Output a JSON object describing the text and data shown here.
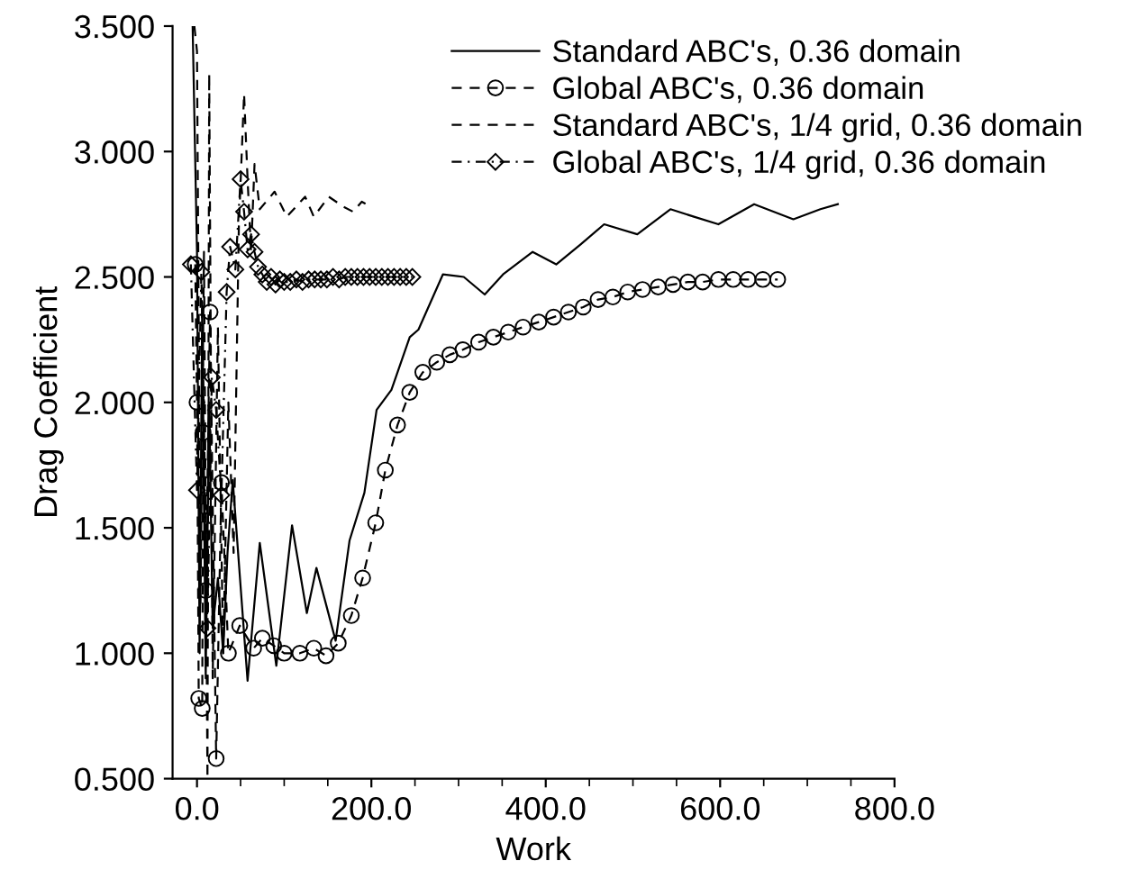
{
  "chart_data": {
    "type": "line",
    "xlabel": "Work",
    "ylabel": "Drag Coefficient",
    "xlim": [
      -28,
      800
    ],
    "ylim": [
      0.5,
      3.5
    ],
    "xticks": [
      {
        "value": 0,
        "label": "0.0"
      },
      {
        "value": 200,
        "label": "200.0"
      },
      {
        "value": 400,
        "label": "400.0"
      },
      {
        "value": 600,
        "label": "600.0"
      },
      {
        "value": 800,
        "label": "800.0"
      }
    ],
    "yticks": [
      {
        "value": 0.5,
        "label": "0.500"
      },
      {
        "value": 1.0,
        "label": "1.000"
      },
      {
        "value": 1.5,
        "label": "1.500"
      },
      {
        "value": 2.0,
        "label": "2.000"
      },
      {
        "value": 2.5,
        "label": "2.500"
      },
      {
        "value": 3.0,
        "label": "3.000"
      },
      {
        "value": 3.5,
        "label": "3.500"
      }
    ],
    "grid": false,
    "legend": "top right",
    "series": [
      {
        "name": "Standard ABC's, 0.36 domain",
        "color": "#000000",
        "marker": "none",
        "line_style": "solid",
        "x": [
          -5,
          0,
          3,
          6,
          10,
          14,
          18,
          24,
          30,
          35,
          41,
          58,
          72,
          91,
          109,
          126,
          137,
          159,
          175,
          192,
          206,
          223,
          244,
          254,
          282,
          306,
          330,
          351,
          385,
          412,
          440,
          467,
          505,
          543,
          570,
          598,
          639,
          684,
          715,
          735
        ],
        "values": [
          3.5,
          2.6,
          1.0,
          2.4,
          0.9,
          2.0,
          1.1,
          1.3,
          1.0,
          1.4,
          1.69,
          0.89,
          1.44,
          0.95,
          1.51,
          1.16,
          1.34,
          1.05,
          1.45,
          1.64,
          1.97,
          2.05,
          2.26,
          2.29,
          2.51,
          2.5,
          2.43,
          2.51,
          2.6,
          2.55,
          2.63,
          2.71,
          2.67,
          2.77,
          2.74,
          2.71,
          2.79,
          2.73,
          2.77,
          2.79
        ]
      },
      {
        "name": "Global ABC's, 0.36 domain",
        "color": "#000000",
        "marker": "circle",
        "line_style": "dashed",
        "x": [
          -2,
          0,
          2,
          6,
          7,
          10,
          15,
          22,
          28,
          36,
          49,
          65,
          75,
          88,
          100,
          118,
          134,
          148,
          162,
          177,
          190,
          205,
          216,
          230,
          244,
          259,
          275,
          290,
          305,
          323,
          340,
          357,
          374,
          392,
          409,
          426,
          443,
          460,
          477,
          494,
          511,
          529,
          546,
          563,
          580,
          598,
          615,
          632,
          649,
          666
        ],
        "values": [
          2.55,
          2.0,
          0.82,
          0.78,
          1.88,
          1.25,
          2.36,
          0.58,
          1.68,
          1.0,
          1.11,
          1.02,
          1.06,
          1.03,
          1.0,
          1.0,
          1.02,
          0.99,
          1.04,
          1.15,
          1.3,
          1.52,
          1.73,
          1.91,
          2.04,
          2.12,
          2.16,
          2.19,
          2.21,
          2.24,
          2.26,
          2.28,
          2.3,
          2.32,
          2.34,
          2.36,
          2.38,
          2.41,
          2.42,
          2.44,
          2.45,
          2.46,
          2.47,
          2.48,
          2.48,
          2.49,
          2.49,
          2.49,
          2.49,
          2.49
        ]
      },
      {
        "name": "Standard ABC's, 1/4 grid, 0.36 domain",
        "color": "#000000",
        "marker": "none",
        "line_style": "dashed",
        "x": [
          -3,
          0,
          4,
          8,
          12,
          14,
          18,
          24,
          30,
          36,
          42,
          48,
          54,
          58,
          62,
          66,
          72,
          89,
          103,
          124,
          134,
          151,
          168,
          179,
          189,
          199
        ],
        "values": [
          3.5,
          3.4,
          1.2,
          2.6,
          0.5,
          3.31,
          0.9,
          2.3,
          1.0,
          2.0,
          1.4,
          2.7,
          3.23,
          2.89,
          2.6,
          2.95,
          2.77,
          2.84,
          2.74,
          2.82,
          2.74,
          2.82,
          2.78,
          2.76,
          2.8,
          2.78
        ]
      },
      {
        "name": "Global ABC's, 1/4 grid, 0.36 domain",
        "color": "#000000",
        "marker": "diamond",
        "line_style": "dashdot",
        "x": [
          -7,
          0,
          5,
          12,
          17,
          22,
          28,
          34,
          38,
          44,
          50,
          54,
          58,
          62,
          66,
          70,
          75,
          80,
          85,
          90,
          95,
          100,
          107,
          114,
          121,
          128,
          135,
          142,
          149,
          156,
          163,
          170,
          177,
          184,
          191,
          198,
          205,
          212,
          219,
          226,
          233,
          240,
          247
        ],
        "values": [
          2.55,
          1.65,
          2.52,
          1.1,
          2.1,
          1.97,
          1.63,
          2.44,
          2.62,
          2.53,
          2.89,
          2.76,
          2.61,
          2.67,
          2.6,
          2.54,
          2.51,
          2.48,
          2.5,
          2.47,
          2.49,
          2.48,
          2.48,
          2.49,
          2.48,
          2.49,
          2.49,
          2.49,
          2.49,
          2.5,
          2.49,
          2.5,
          2.5,
          2.5,
          2.5,
          2.5,
          2.5,
          2.5,
          2.5,
          2.5,
          2.5,
          2.5,
          2.5
        ]
      }
    ]
  }
}
